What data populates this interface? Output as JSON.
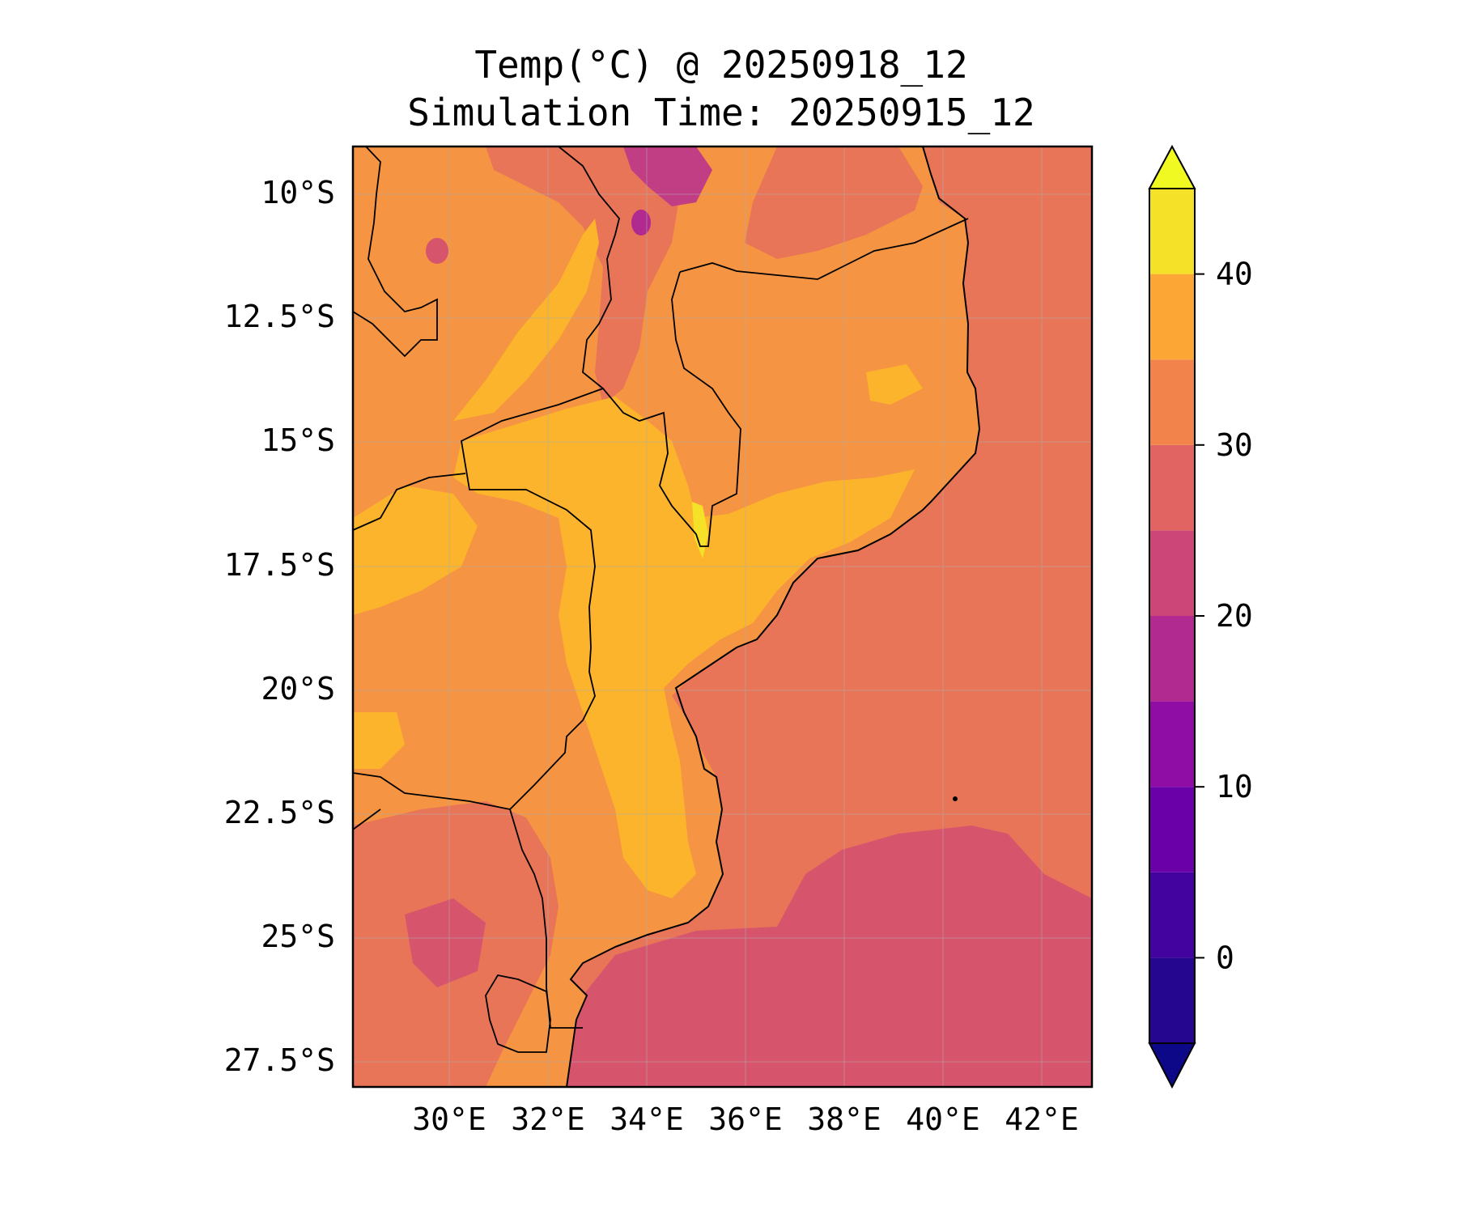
{
  "figure": {
    "title_line1": "Temp(°C) @ 20250918_12",
    "title_line2": "Simulation Time: 20250915_12"
  },
  "map": {
    "projection": "lat-lon",
    "lon_range": [
      28.0,
      43.0
    ],
    "lat_range": [
      -28.5,
      -9.0
    ],
    "x_tick_labels": [
      "30°E",
      "32°E",
      "34°E",
      "36°E",
      "38°E",
      "40°E",
      "42°E"
    ],
    "y_tick_labels": [
      "10°S",
      "12.5°S",
      "15°S",
      "17.5°S",
      "20°S",
      "22.5°S",
      "25°S",
      "27.5°S"
    ],
    "gridlines": true,
    "colors": {
      "land_hot": "#fbb42c",
      "land_warm": "#f59442",
      "land_mild": "#e97558",
      "ocean": "#e97558",
      "ocean_cool": "#d6556d",
      "highland_cool": "#c13e84"
    }
  },
  "colorbar": {
    "colormap": "plasma",
    "extend": "both",
    "levels": [
      -5,
      0,
      5,
      10,
      15,
      20,
      25,
      30,
      35,
      40,
      45
    ],
    "tick_labels": [
      "0",
      "10",
      "20",
      "30",
      "40"
    ],
    "band_colors": [
      "#24078e",
      "#43039e",
      "#6a00a8",
      "#8f0da4",
      "#b12a90",
      "#cc4778",
      "#e16462",
      "#f2844b",
      "#fca636",
      "#f4e128"
    ],
    "under_color": "#0d0887",
    "over_color": "#f0f921"
  }
}
